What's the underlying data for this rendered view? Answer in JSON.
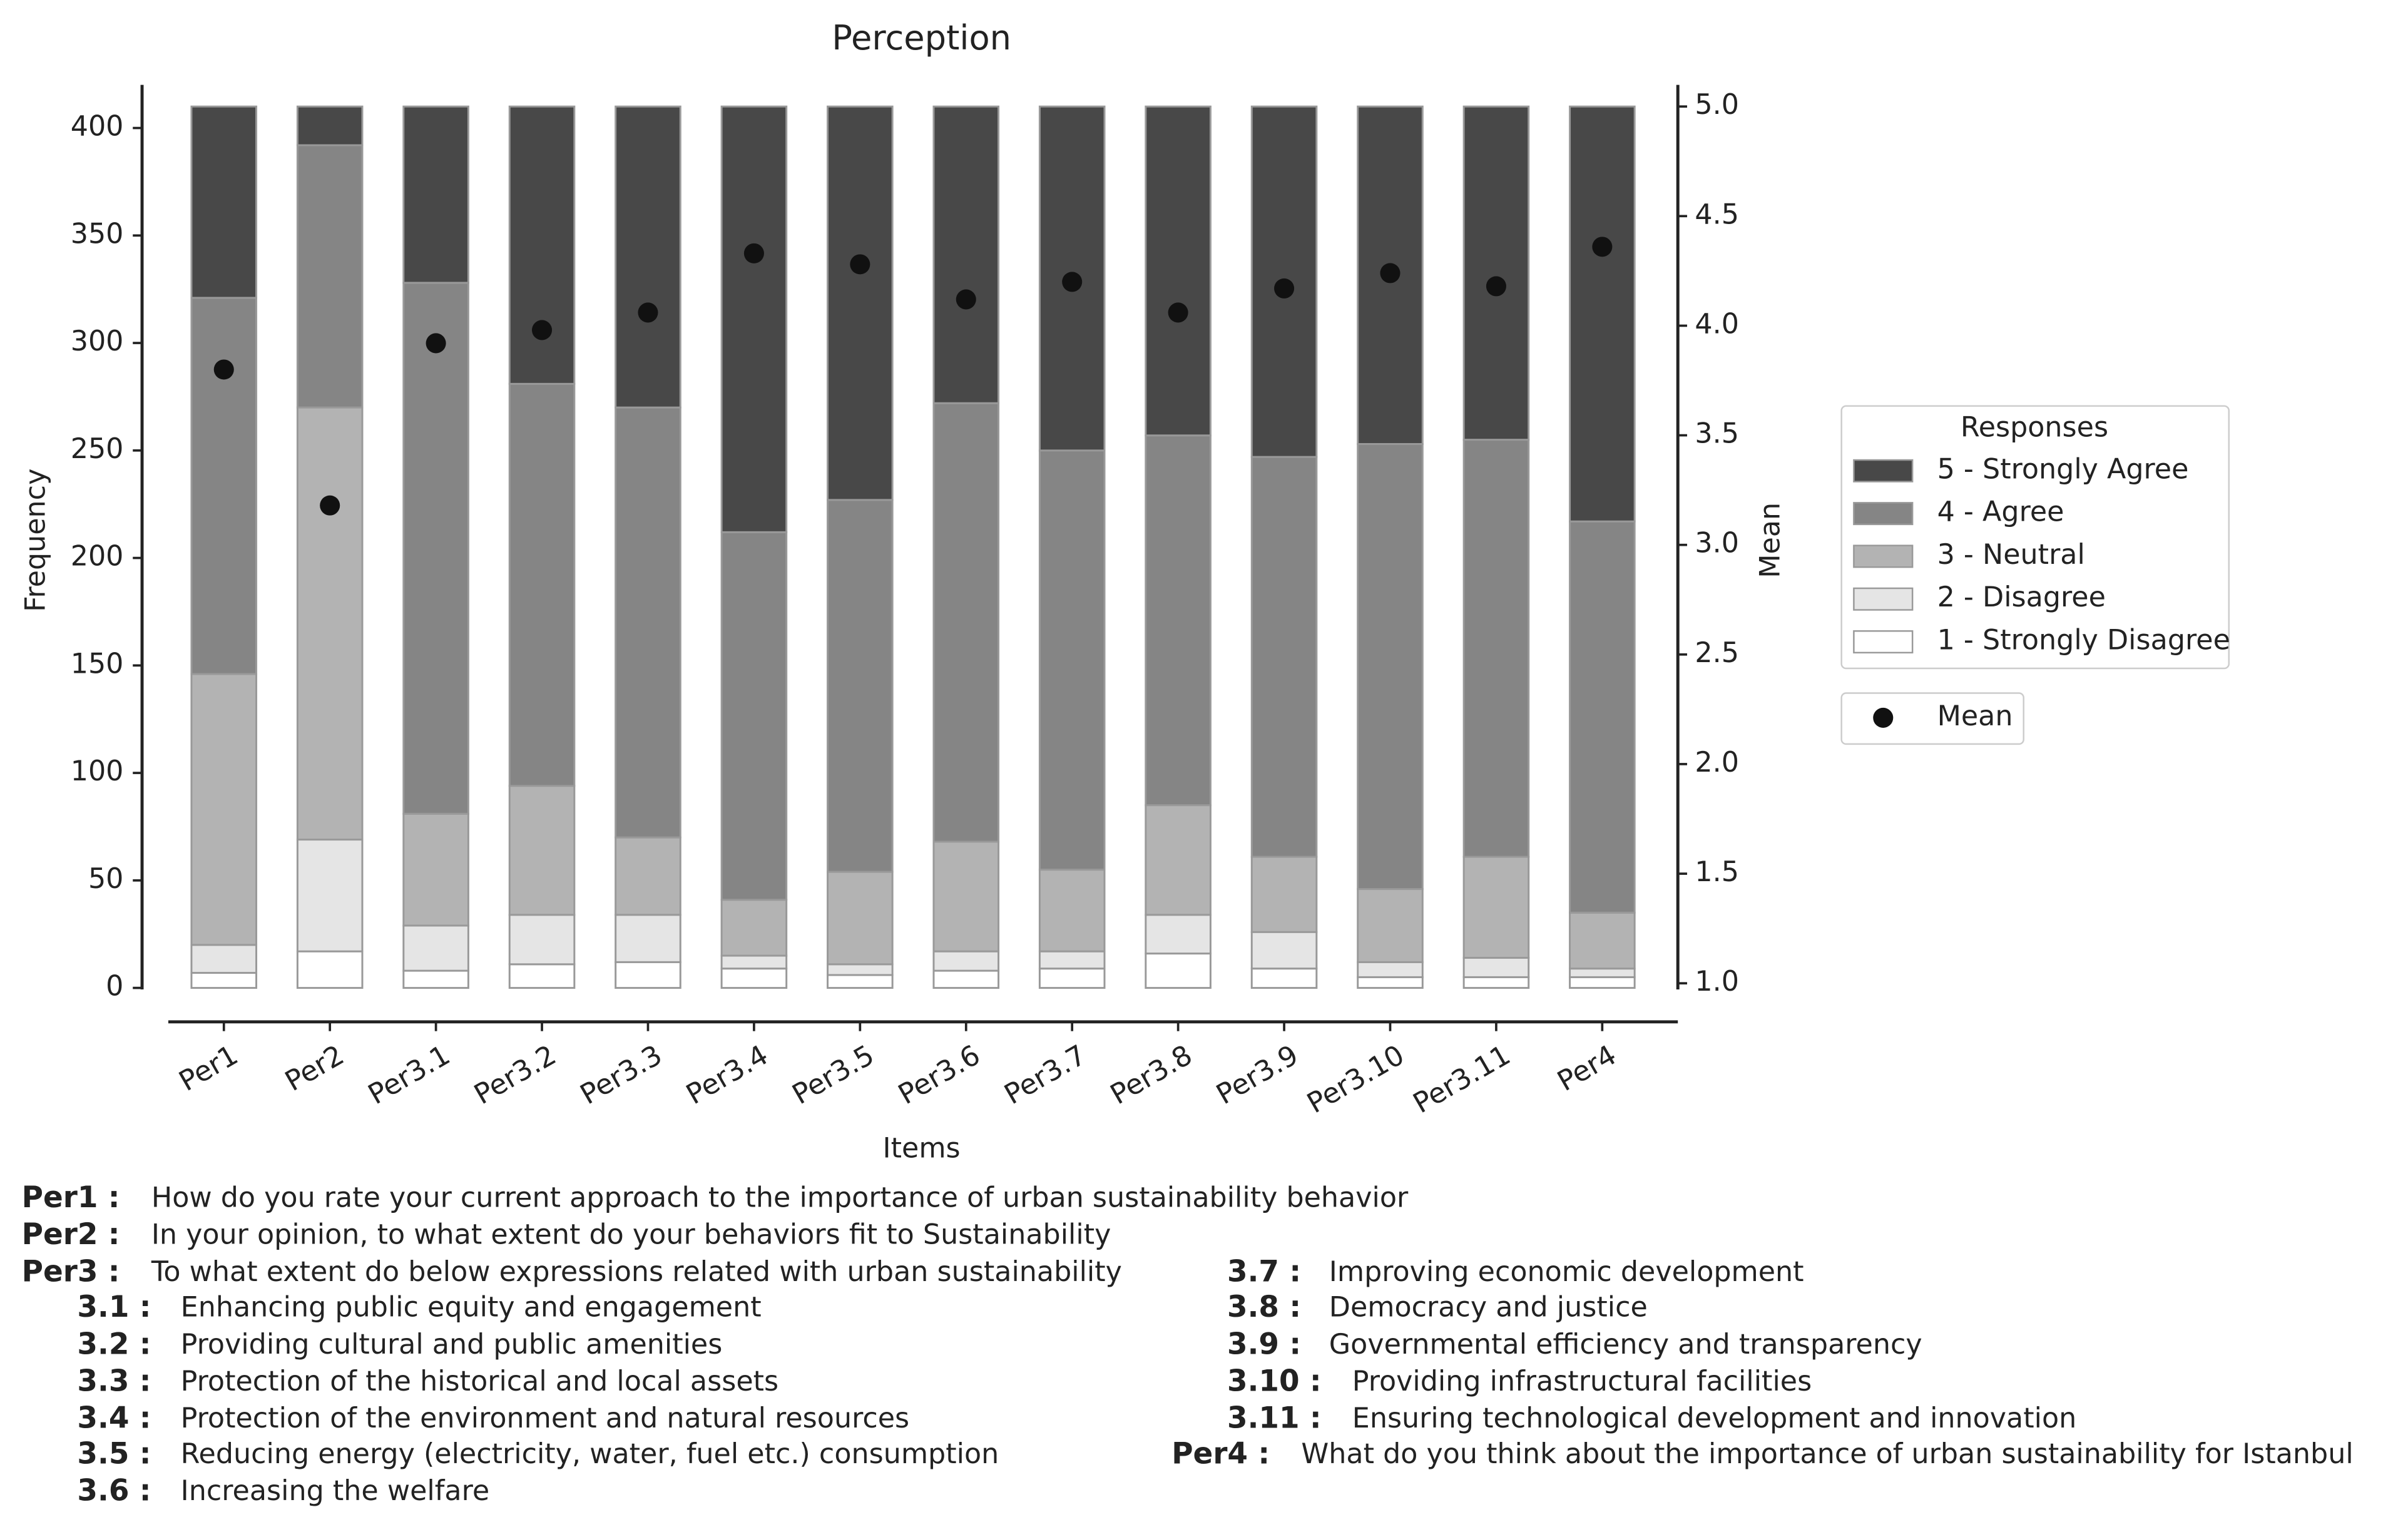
{
  "chart_data": {
    "type": "stacked_bar",
    "title": "Perception",
    "xlabel": "Items",
    "ylabel": "Frequency",
    "y2label": "Mean",
    "categories": [
      "Per1",
      "Per2",
      "Per3.1",
      "Per3.2",
      "Per3.3",
      "Per3.4",
      "Per3.5",
      "Per3.6",
      "Per3.7",
      "Per3.8",
      "Per3.9",
      "Per3.10",
      "Per3.11",
      "Per4"
    ],
    "series": [
      {
        "name": "1 - Strongly Disagree",
        "color": "#ffffff",
        "values": [
          7,
          17,
          8,
          11,
          12,
          9,
          6,
          8,
          9,
          16,
          9,
          5,
          5,
          5
        ]
      },
      {
        "name": "2 - Disagree",
        "color": "#e5e5e5",
        "values": [
          13,
          52,
          21,
          23,
          22,
          6,
          5,
          9,
          8,
          18,
          17,
          7,
          9,
          4
        ]
      },
      {
        "name": "3 - Neutral",
        "color": "#b3b3b3",
        "values": [
          126,
          201,
          52,
          60,
          36,
          26,
          43,
          51,
          38,
          51,
          35,
          34,
          47,
          26
        ]
      },
      {
        "name": "4 - Agree",
        "color": "#858585",
        "values": [
          175,
          122,
          247,
          187,
          200,
          171,
          173,
          204,
          195,
          172,
          186,
          207,
          194,
          182
        ]
      },
      {
        "name": "5 - Strongly Agree",
        "color": "#484848",
        "values": [
          89,
          18,
          82,
          129,
          140,
          198,
          183,
          138,
          160,
          153,
          163,
          157,
          155,
          193
        ]
      }
    ],
    "mean": {
      "name": "Mean",
      "color": "#111111",
      "axis": "y2",
      "values": [
        3.8,
        3.18,
        3.92,
        3.98,
        4.06,
        4.33,
        4.28,
        4.12,
        4.2,
        4.06,
        4.17,
        4.24,
        4.18,
        4.36
      ]
    },
    "legend_title": "Responses",
    "legend": "right",
    "ylim": [
      0,
      410
    ],
    "yticks": [
      0,
      50,
      100,
      150,
      200,
      250,
      300,
      350,
      400
    ],
    "y2lim": [
      1,
      5
    ],
    "y2ticks": [
      {
        "value": 1,
        "label": "1.0"
      },
      1.5,
      {
        "value": 2,
        "label": "2.0"
      },
      2.5,
      {
        "value": 3,
        "label": "3.0"
      },
      3.5,
      {
        "value": 4,
        "label": "4.0"
      },
      4.5,
      {
        "value": 5,
        "label": "5.0"
      }
    ],
    "grid": false
  },
  "notes": [
    {
      "label": "Per1 :",
      "text": "How do you rate your current approach to the importance of urban sustainability behavior"
    },
    {
      "label": "Per2 :",
      "text": "In your opinion, to what extent do your behaviors fit to Sustainability"
    },
    {
      "label": "Per3 :",
      "text": "To what extent do below expressions related with urban sustainability"
    },
    {
      "label": "3.1 :",
      "text": "Enhancing public equity and engagement"
    },
    {
      "label": "3.2 :",
      "text": "Providing cultural and public amenities"
    },
    {
      "label": "3.3 :",
      "text": "Protection of the historical and local assets"
    },
    {
      "label": "3.4 :",
      "text": "Protection of the environment and natural resources"
    },
    {
      "label": "3.5 :",
      "text": "Reducing energy (electricity, water, fuel etc.) consumption"
    },
    {
      "label": "3.6 :",
      "text": "Increasing the welfare"
    },
    {
      "label": "3.7 :",
      "text": "Improving economic development"
    },
    {
      "label": "3.8 :",
      "text": "Democracy and justice"
    },
    {
      "label": "3.9 :",
      "text": "Governmental efficiency and transparency"
    },
    {
      "label": "3.10 :",
      "text": "Providing infrastructural facilities"
    },
    {
      "label": "3.11 :",
      "text": "Ensuring technological development and innovation"
    },
    {
      "label": "Per4 :",
      "text": "What do you think about the importance of urban sustainability for Istanbul"
    }
  ]
}
